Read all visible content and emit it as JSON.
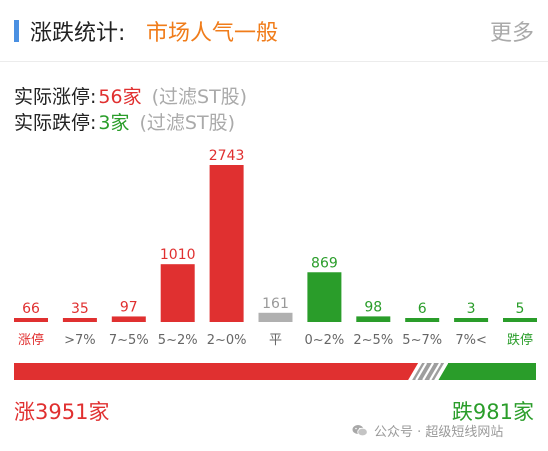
{
  "header": {
    "title": "涨跌统计:",
    "mood": "市场人气一般",
    "more_label": "更多"
  },
  "stats": {
    "limit_up_label": "实际涨停:",
    "limit_up_value": "56家",
    "limit_down_label": "实际跌停:",
    "limit_down_value": "3家",
    "filter_note": "(过滤ST股)"
  },
  "chart_data": {
    "type": "bar",
    "categories": [
      "涨停",
      ">7%",
      "7~5%",
      "5~2%",
      "2~0%",
      "平",
      "0~2%",
      "2~5%",
      "5~7%",
      "7%<",
      "跌停"
    ],
    "values": [
      66,
      35,
      97,
      1010,
      2743,
      161,
      869,
      98,
      6,
      3,
      5
    ],
    "colors": [
      "#e03030",
      "#e03030",
      "#e03030",
      "#e03030",
      "#e03030",
      "#b0b0b0",
      "#2a9d2a",
      "#2a9d2a",
      "#2a9d2a",
      "#2a9d2a",
      "#2a9d2a"
    ],
    "label_colors": [
      "#e03030",
      "#e03030",
      "#e03030",
      "#e03030",
      "#e03030",
      "#999999",
      "#2a9d2a",
      "#2a9d2a",
      "#2a9d2a",
      "#2a9d2a",
      "#2a9d2a"
    ],
    "category_colors": [
      "#e03030",
      "#666666",
      "#666666",
      "#666666",
      "#666666",
      "#666666",
      "#666666",
      "#666666",
      "#666666",
      "#666666",
      "#2a9d2a"
    ],
    "ylim": [
      0,
      2743
    ],
    "title": "",
    "xlabel": "",
    "ylabel": ""
  },
  "ratio": {
    "up_count": 3951,
    "flat_count": 161,
    "down_count": 981,
    "up_color": "#e03030",
    "flat_color": "#9e9e9e",
    "down_color": "#2a9d2a"
  },
  "footer": {
    "up_total": "涨3951家",
    "down_total": "跌981家",
    "watermark": "公众号 · 超级短线网站",
    "watermark_icon": "wechat-icon"
  }
}
